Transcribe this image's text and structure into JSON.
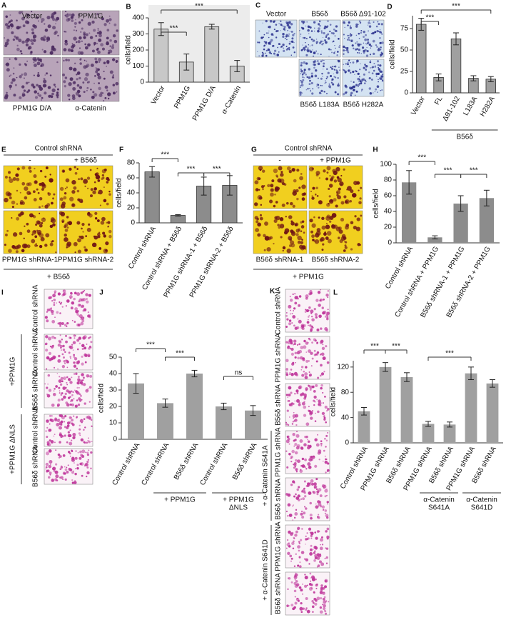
{
  "chart_data": [
    {
      "panel": "B",
      "type": "bar",
      "ylabel": "cells/field",
      "categories": [
        "Vector",
        "PPM1G",
        "PPM1G D/A",
        "α-Catenin"
      ],
      "values": [
        330,
        125,
        345,
        100
      ],
      "errors": [
        40,
        50,
        15,
        35
      ],
      "color": "#c8c8c8",
      "ylim": [
        0,
        400
      ],
      "yticks": [
        0,
        100,
        200,
        300,
        400
      ],
      "annotations": [
        "***",
        "***"
      ],
      "groups": []
    },
    {
      "panel": "D",
      "type": "bar",
      "ylabel": "cells/field",
      "categories": [
        "Vector",
        "FL",
        "Δ91-102",
        "L183A",
        "H282A"
      ],
      "values": [
        80,
        18,
        63,
        17,
        16
      ],
      "errors": [
        7,
        4,
        7,
        3,
        3
      ],
      "color": "#a0a0a0",
      "ylim": [
        0,
        90
      ],
      "yticks": [
        0,
        25,
        50,
        75
      ],
      "annotations": [
        "***",
        "***"
      ],
      "groups": [
        {
          "lines": [
            "B56δ"
          ]
        }
      ]
    },
    {
      "panel": "F",
      "type": "bar",
      "ylabel": "cells/field",
      "categories": [
        "Control shRNA",
        "Control shRNA + B56δ",
        "PPM1G shRNA-1 + B56δ",
        "PPM1G shRNA-2 + B56δ"
      ],
      "values": [
        68,
        10,
        49,
        50
      ],
      "errors": [
        7,
        1,
        12,
        13
      ],
      "color": "#8c8c8c",
      "ylim": [
        0,
        80
      ],
      "yticks": [
        0,
        20,
        40,
        60,
        80
      ],
      "annotations": [
        "***",
        "***",
        "***"
      ],
      "groups": []
    },
    {
      "panel": "H",
      "type": "bar",
      "ylabel": "cells/field",
      "categories": [
        "Control shRNA",
        "Control shRNA + PPM1G",
        "B56δ shRNA-1 + PPM1G",
        "B56δ shRNA-2 + PPM1G"
      ],
      "values": [
        77,
        7,
        50,
        57
      ],
      "errors": [
        15,
        2,
        10,
        10
      ],
      "color": "#8c8c8c",
      "ylim": [
        0,
        100
      ],
      "yticks": [
        0,
        20,
        40,
        60,
        80,
        100
      ],
      "annotations": [
        "***",
        "***",
        "***"
      ],
      "groups": []
    },
    {
      "panel": "J",
      "type": "bar",
      "ylabel": "cells/field",
      "categories": [
        "Control shRNA",
        "Control shRNA",
        "B56δ shRNA",
        "Control shRNA",
        "B56δ shRNA"
      ],
      "values": [
        34,
        22,
        40,
        20,
        17.5
      ],
      "errors": [
        6,
        2.5,
        2,
        2,
        3
      ],
      "color": "#a0a0a0",
      "ylim": [
        0,
        50
      ],
      "yticks": [
        0,
        10,
        20,
        30,
        40,
        50
      ],
      "annotations": [
        "***",
        "***",
        "ns"
      ],
      "groups": [
        {
          "lines": [
            "+ PPM1G"
          ]
        },
        {
          "lines": [
            "+ PPM1G",
            "ΔNLS"
          ]
        }
      ]
    },
    {
      "panel": "L",
      "type": "bar",
      "ylabel": "cells/field",
      "categories": [
        "Control shRNA",
        "PPM1G shRNA",
        "B56δ shRNA",
        "PPM1G shRNA",
        "B56δ shRNA",
        "PPM1G shRNA",
        "B56δ shRNA"
      ],
      "values": [
        50,
        120,
        104,
        30,
        29,
        110,
        94
      ],
      "errors": [
        6,
        7,
        7,
        4,
        4,
        10,
        6
      ],
      "color": "#a0a0a0",
      "ylim": [
        0,
        130
      ],
      "yticks": [
        0,
        40,
        80,
        120
      ],
      "annotations": [
        "***",
        "***",
        "***"
      ],
      "groups": [
        {
          "lines": [
            "α-Catenin",
            "S641A"
          ]
        },
        {
          "lines": [
            "α-Catenin",
            "S641D"
          ]
        }
      ]
    }
  ],
  "image_panels": [
    {
      "panel": "A",
      "labels": [
        "Vector",
        "PPM1G",
        "PPM1G D/A",
        "α-Catenin"
      ]
    },
    {
      "panel": "C",
      "labels": [
        "Vector",
        "B56δ",
        "B56δ Δ91-102",
        "B56δ L183A",
        "B56δ H282A"
      ]
    },
    {
      "panel": "E",
      "labels": [
        "Control shRNA",
        "-",
        "+ B56δ",
        "PPM1G shRNA-1",
        "PPM1G shRNA-2",
        "+ B56δ"
      ]
    },
    {
      "panel": "G",
      "labels": [
        "Control shRNA",
        "-",
        "+ PPM1G",
        "B56δ shRNA-1",
        "B56δ shRNA-2",
        "+ PPM1G"
      ]
    },
    {
      "panel": "I",
      "labels": [
        "Control shRNA",
        "Control shRNA",
        "B56δ shRNA",
        "+PPM1G",
        "Control shRNA",
        "B56δ shRNA",
        "+PPM1G ΔNLS"
      ]
    },
    {
      "panel": "K",
      "labels": [
        "Control shRNA",
        "PPM1G shRNA",
        "B56δ shRNA",
        "+ α-Catenin S641A",
        "PPM1G shRNA",
        "B56δ shRNA",
        "+ α-Catenin S641D",
        "PPM1G shRNA",
        "B56δ shRNA"
      ]
    }
  ]
}
